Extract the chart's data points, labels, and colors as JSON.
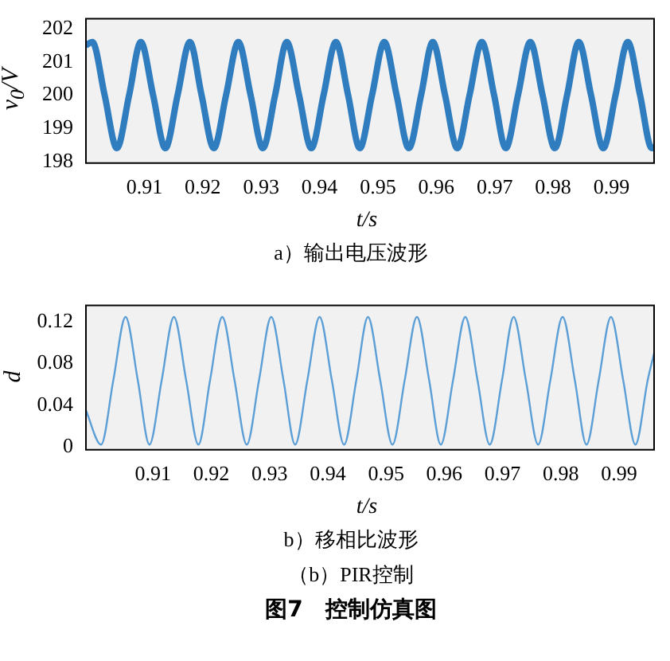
{
  "chart_data": [
    {
      "type": "line",
      "xlabel": "t/s",
      "ylabel": "v$_{0}$/V",
      "annotations": [
        "a）输出电压波形"
      ],
      "xlim": [
        0.9,
        0.9973
      ],
      "xticks": [
        0.91,
        0.92,
        0.93,
        0.94,
        0.95,
        0.96,
        0.97,
        0.98,
        0.99
      ],
      "ylim": [
        197.95,
        202.3
      ],
      "yticks": [
        198,
        199,
        200,
        201,
        202
      ],
      "series": [
        {
          "color": "#2f7dbf",
          "x": [
            0.9,
            0.9011,
            0.9032,
            0.9053,
            0.9074,
            0.9094,
            0.9115,
            0.9136,
            0.9157,
            0.9178,
            0.9198,
            0.9219,
            0.924,
            0.9261,
            0.9282,
            0.9303,
            0.9324,
            0.9344,
            0.9365,
            0.9386,
            0.9407,
            0.9428,
            0.9449,
            0.9469,
            0.949,
            0.9511,
            0.9532,
            0.9553,
            0.9574,
            0.9594,
            0.9615,
            0.9636,
            0.9657,
            0.9678,
            0.9699,
            0.9719,
            0.974,
            0.9761,
            0.9782,
            0.9803,
            0.9824,
            0.9844,
            0.9865,
            0.9886,
            0.9907,
            0.9928,
            0.9949,
            0.9969,
            0.9973
          ],
          "values": [
            201.5,
            201.6,
            200,
            198.4,
            200,
            201.6,
            200,
            198.4,
            200,
            201.6,
            200,
            198.4,
            200,
            201.6,
            200,
            198.4,
            200,
            201.6,
            200,
            198.4,
            200,
            201.6,
            200,
            198.4,
            200,
            201.6,
            200,
            198.4,
            200,
            201.6,
            200,
            198.4,
            200,
            201.6,
            200,
            198.4,
            200,
            201.6,
            200,
            198.4,
            200,
            201.6,
            200,
            198.4,
            200,
            201.6,
            200,
            198.4,
            198.5
          ]
        }
      ]
    },
    {
      "type": "line",
      "xlabel": "t/s",
      "ylabel": "d",
      "annotations": [
        "b）移相比波形",
        "（b）PIR控制",
        "图7　控制仿真图"
      ],
      "xlim": [
        0.8985,
        0.996
      ],
      "xticks": [
        0.91,
        0.92,
        0.93,
        0.94,
        0.95,
        0.96,
        0.97,
        0.98,
        0.99
      ],
      "ylim": [
        -0.003,
        0.136
      ],
      "yticks": [
        0,
        0.04,
        0.08,
        0.12
      ],
      "series": [
        {
          "color": "#5c9fd6",
          "x": [
            0.8985,
            0.9011,
            0.9032,
            0.9053,
            0.9074,
            0.9094,
            0.9115,
            0.9136,
            0.9157,
            0.9178,
            0.9198,
            0.9219,
            0.924,
            0.9261,
            0.9282,
            0.9303,
            0.9324,
            0.9344,
            0.9365,
            0.9386,
            0.9407,
            0.9428,
            0.9449,
            0.9469,
            0.949,
            0.9511,
            0.9532,
            0.9553,
            0.9574,
            0.9594,
            0.9615,
            0.9636,
            0.9657,
            0.9678,
            0.9699,
            0.9719,
            0.974,
            0.9761,
            0.9782,
            0.9803,
            0.9824,
            0.9844,
            0.9865,
            0.9886,
            0.9907,
            0.9928,
            0.9949,
            0.996
          ],
          "values": [
            0.035,
            0.002,
            0.064,
            0.125,
            0.064,
            0.002,
            0.064,
            0.125,
            0.064,
            0.002,
            0.064,
            0.125,
            0.064,
            0.002,
            0.064,
            0.125,
            0.064,
            0.002,
            0.064,
            0.125,
            0.064,
            0.002,
            0.064,
            0.125,
            0.064,
            0.002,
            0.064,
            0.125,
            0.064,
            0.002,
            0.064,
            0.125,
            0.064,
            0.002,
            0.064,
            0.125,
            0.064,
            0.002,
            0.064,
            0.125,
            0.064,
            0.002,
            0.064,
            0.125,
            0.064,
            0.002,
            0.064,
            0.09
          ]
        }
      ]
    }
  ]
}
